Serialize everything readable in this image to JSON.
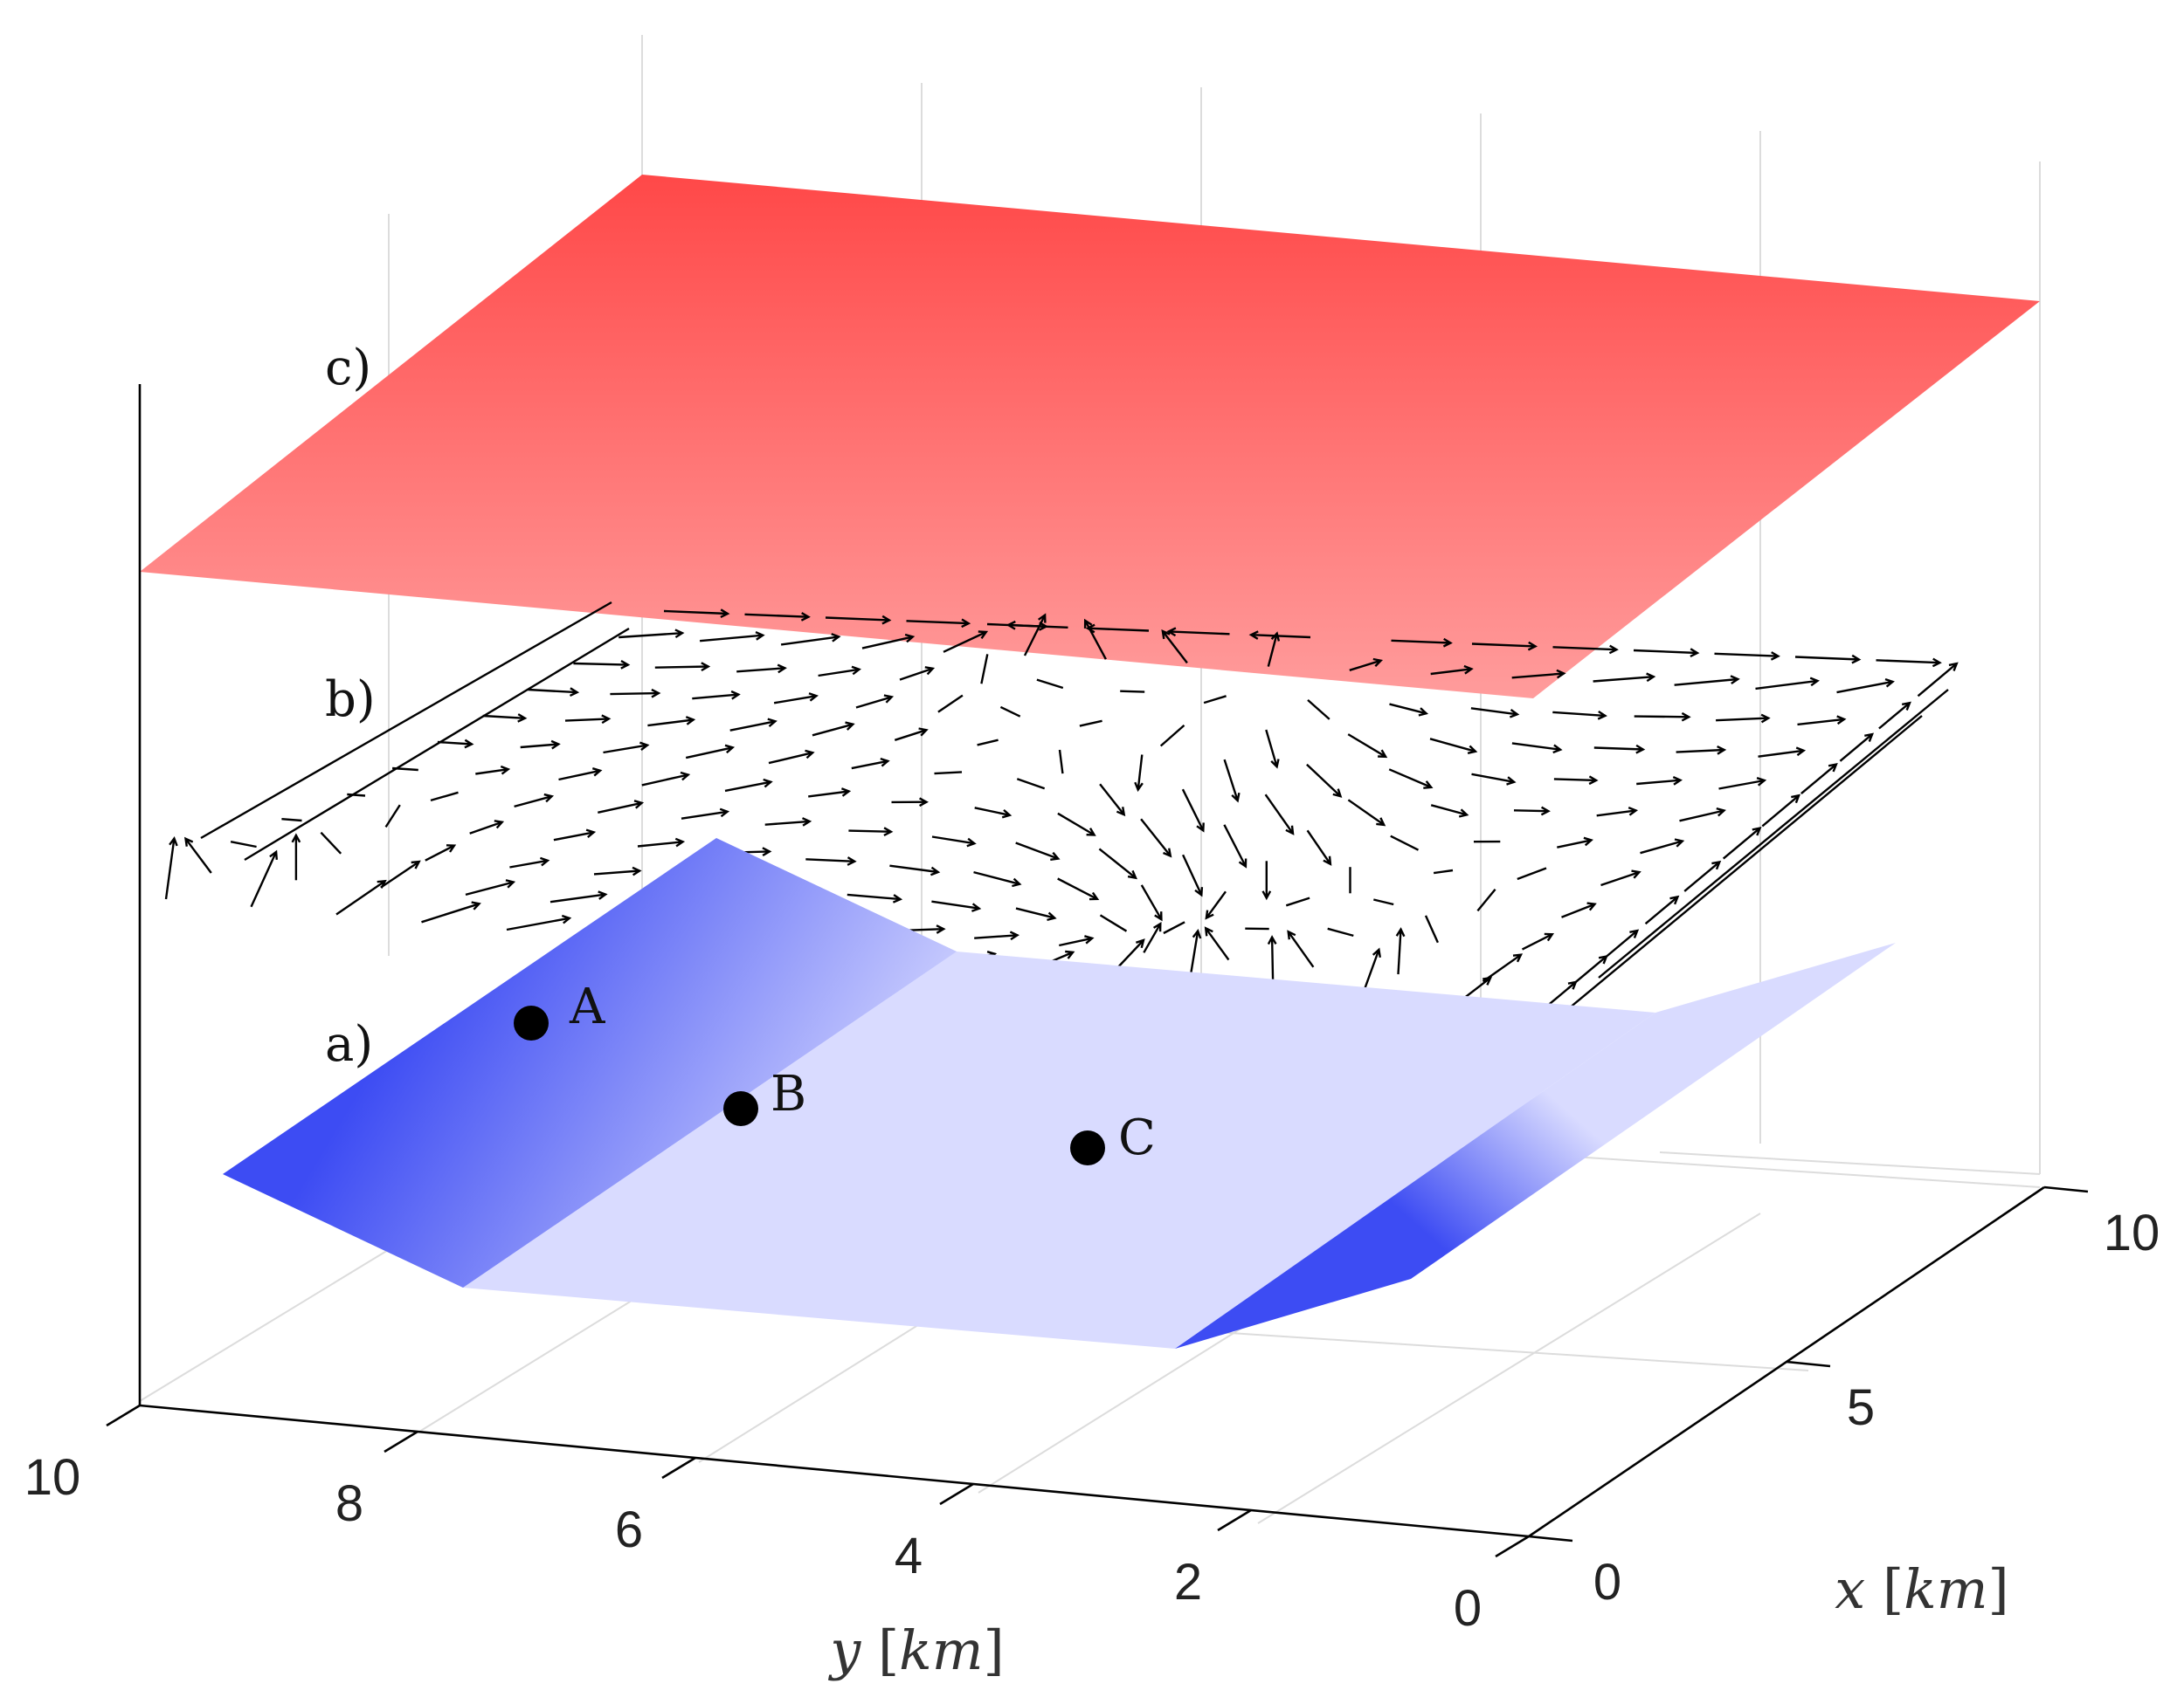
{
  "chart_data": {
    "type": "3d-surface-layers",
    "title": "",
    "x_axis": {
      "label": "x",
      "unit": "km",
      "range": [
        0,
        10
      ],
      "ticks": [
        0,
        5,
        10
      ]
    },
    "y_axis": {
      "label": "y",
      "unit": "km",
      "range": [
        0,
        10
      ],
      "ticks": [
        0,
        2,
        4,
        6,
        8,
        10
      ]
    },
    "grid": true,
    "layers": [
      {
        "label": "a)",
        "kind": "surface",
        "colormap": "blue",
        "description_value": "basin-shaped surface, high along x≈0 and x≈10 edges"
      },
      {
        "label": "b)",
        "kind": "vector-field",
        "color": "#000000"
      },
      {
        "label": "c)",
        "kind": "surface",
        "colormap": "red"
      }
    ],
    "points": [
      {
        "label": "A"
      },
      {
        "label": "B"
      },
      {
        "label": "C"
      }
    ],
    "colors": {
      "surface_a": "#3a48f2",
      "surface_a_light": "#d8daff",
      "surface_c": "#ff4545",
      "surface_c_light": "#ff9a9a",
      "grid": "#dcdcdc",
      "axis": "#000000"
    }
  }
}
